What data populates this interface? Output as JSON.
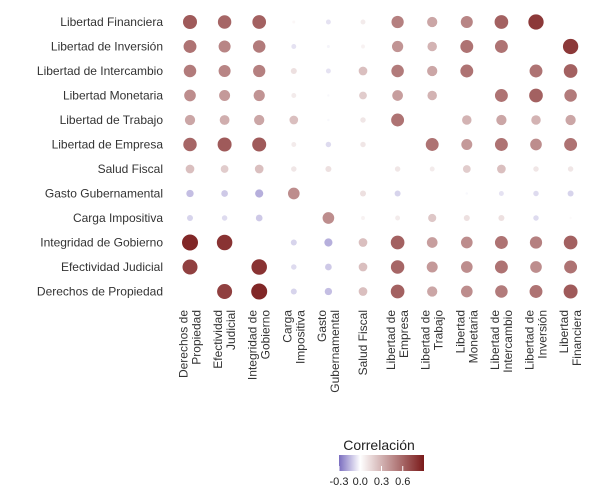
{
  "chart_data": {
    "type": "heatmap",
    "title": "",
    "xlabel": "",
    "ylabel": "",
    "x_labels": [
      [
        "Derechos de",
        "Propiedad"
      ],
      [
        "Efectividad",
        "Judicial"
      ],
      [
        "Integridad de",
        "Gobierno"
      ],
      [
        "Carga",
        "Impositiva"
      ],
      [
        "Gasto",
        "Gubernamental"
      ],
      [
        "Salud Fiscal"
      ],
      [
        "Libertad de",
        "Empresa"
      ],
      [
        "Libertad de",
        "Trabajo"
      ],
      [
        "Libertad",
        "Monetaria"
      ],
      [
        "Libertad de",
        "Intercambio"
      ],
      [
        "Libertad de",
        "Inversión"
      ],
      [
        "Libertad",
        "Financiera"
      ]
    ],
    "y_labels": [
      "Libertad Financiera",
      "Libertad de Inversión",
      "Libertad de Intercambio",
      "Libertad Monetaria",
      "Libertad de Trabajo",
      "Libertad de Empresa",
      "Salud Fiscal",
      "Gasto Gubernamental",
      "Carga Impositiva",
      "Integridad de Gobierno",
      "Efectividad Judicial",
      "Derechos de Propiedad"
    ],
    "values": [
      [
        0.65,
        0.6,
        0.62,
        0.03,
        -0.08,
        0.08,
        0.5,
        0.35,
        0.48,
        0.62,
        0.78,
        null
      ],
      [
        0.55,
        0.48,
        0.52,
        -0.08,
        -0.03,
        0.05,
        0.42,
        0.3,
        0.55,
        0.55,
        null,
        0.78
      ],
      [
        0.52,
        0.48,
        0.5,
        0.12,
        -0.08,
        0.25,
        0.52,
        0.35,
        0.55,
        null,
        0.55,
        0.62
      ],
      [
        0.45,
        0.4,
        0.42,
        0.08,
        -0.02,
        0.2,
        0.38,
        0.3,
        null,
        0.55,
        0.62,
        0.52
      ],
      [
        0.35,
        0.32,
        0.35,
        0.25,
        -0.02,
        0.1,
        0.55,
        null,
        0.3,
        0.35,
        0.3,
        0.35
      ],
      [
        0.6,
        0.65,
        0.65,
        0.08,
        -0.1,
        0.1,
        null,
        0.55,
        0.4,
        0.55,
        0.45,
        0.55
      ],
      [
        0.25,
        0.2,
        0.25,
        0.1,
        0.12,
        null,
        0.1,
        0.08,
        0.2,
        0.25,
        0.1,
        0.1
      ],
      [
        -0.18,
        -0.15,
        -0.22,
        0.45,
        null,
        0.12,
        -0.12,
        null,
        -0.02,
        -0.08,
        -0.1,
        -0.12
      ],
      [
        -0.12,
        -0.1,
        -0.15,
        null,
        0.45,
        0.05,
        0.08,
        0.22,
        0.12,
        0.12,
        -0.1,
        0.02
      ],
      [
        0.85,
        0.8,
        null,
        -0.12,
        -0.22,
        0.25,
        0.62,
        0.38,
        0.45,
        0.55,
        0.5,
        0.62
      ],
      [
        0.75,
        null,
        0.8,
        -0.1,
        -0.15,
        0.25,
        0.6,
        0.4,
        0.45,
        0.55,
        0.45,
        0.55
      ],
      [
        null,
        0.75,
        0.85,
        -0.12,
        -0.18,
        0.25,
        0.62,
        0.35,
        0.45,
        0.52,
        0.55,
        0.65
      ]
    ],
    "color_scale": {
      "low": "#7b6ec0",
      "mid": "#ffffff",
      "high": "#7a1a1a",
      "domain": [
        -0.3,
        0.9
      ]
    },
    "legend": {
      "title": "Correlación",
      "ticks": [
        -0.3,
        0.0,
        0.3,
        0.6
      ],
      "tick_labels": [
        "-0.3",
        "0.0",
        "0.3",
        "0.6"
      ],
      "position": "bottom"
    },
    "grid": false
  }
}
